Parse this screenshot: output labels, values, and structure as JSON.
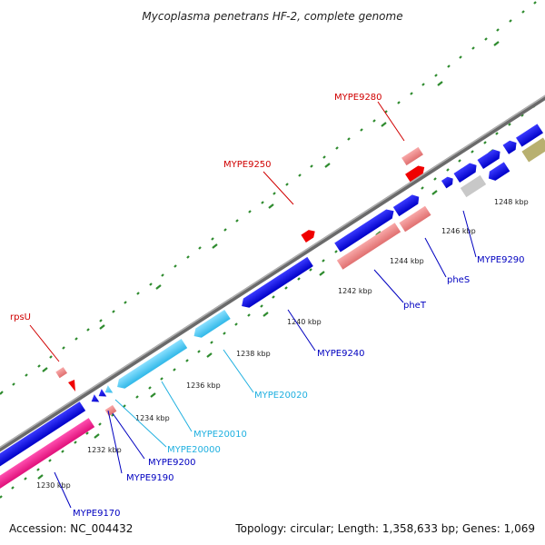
{
  "title": "Mycoplasma penetrans HF-2, complete genome",
  "footer": {
    "accession": "Accession: NC_004432",
    "summary": "Topology: circular; Length: 1,358,633 bp; Genes: 1,069"
  },
  "colors": {
    "backbone": "#808080",
    "dotted_ring": "#2e8b2e",
    "blue_gene": "#1010e0",
    "cyan_gene": "#40c8f0",
    "red_gene": "#f00000",
    "pink_gene": "#f08080",
    "magenta_gene": "#ff1493",
    "gray_gene": "#c8c8c8",
    "olive_gene": "#b8b070",
    "blue_label": "#0000c0",
    "cyan_label": "#20b0e0",
    "red_label": "#d00000"
  },
  "ticks": [
    "1230 kbp",
    "1232 kbp",
    "1234 kbp",
    "1236 kbp",
    "1238 kbp",
    "1240 kbp",
    "1242 kbp",
    "1244 kbp",
    "1246 kbp",
    "1248 kbp"
  ],
  "labels": {
    "rpsU": "rpsU",
    "mype9250": "MYPE9250",
    "mype9280": "MYPE9280",
    "mype9170": "MYPE9170",
    "mype9190": "MYPE9190",
    "mype9200": "MYPE9200",
    "mype20000": "MYPE20000",
    "mype20010": "MYPE20010",
    "mype20020": "MYPE20020",
    "mype9240": "MYPE9240",
    "phet": "pheT",
    "phes": "pheS",
    "mype9290": "MYPE9290"
  }
}
